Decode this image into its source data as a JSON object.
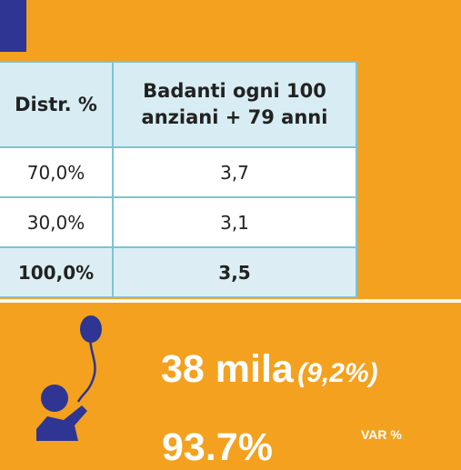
{
  "table": {
    "headers": [
      "Distr. %",
      "Badanti ogni 100 anziani + 79 anni"
    ],
    "rows": [
      [
        "70,0%",
        "3,7"
      ],
      [
        "30,0%",
        "3,1"
      ],
      [
        "100,0%",
        "3,5"
      ]
    ]
  },
  "stat": {
    "value": "38 mila",
    "change": "(9,2%)",
    "partial_text": "93.7%",
    "var_label": "VAR %"
  },
  "colors": {
    "background": "#f3a11f",
    "corner_block": "#2e3592",
    "figure": "#2e3592",
    "table_border": "#7ec3d6",
    "header_bg": "#d7ecf3"
  },
  "icons": {
    "figure": "person-with-balloon-icon"
  }
}
